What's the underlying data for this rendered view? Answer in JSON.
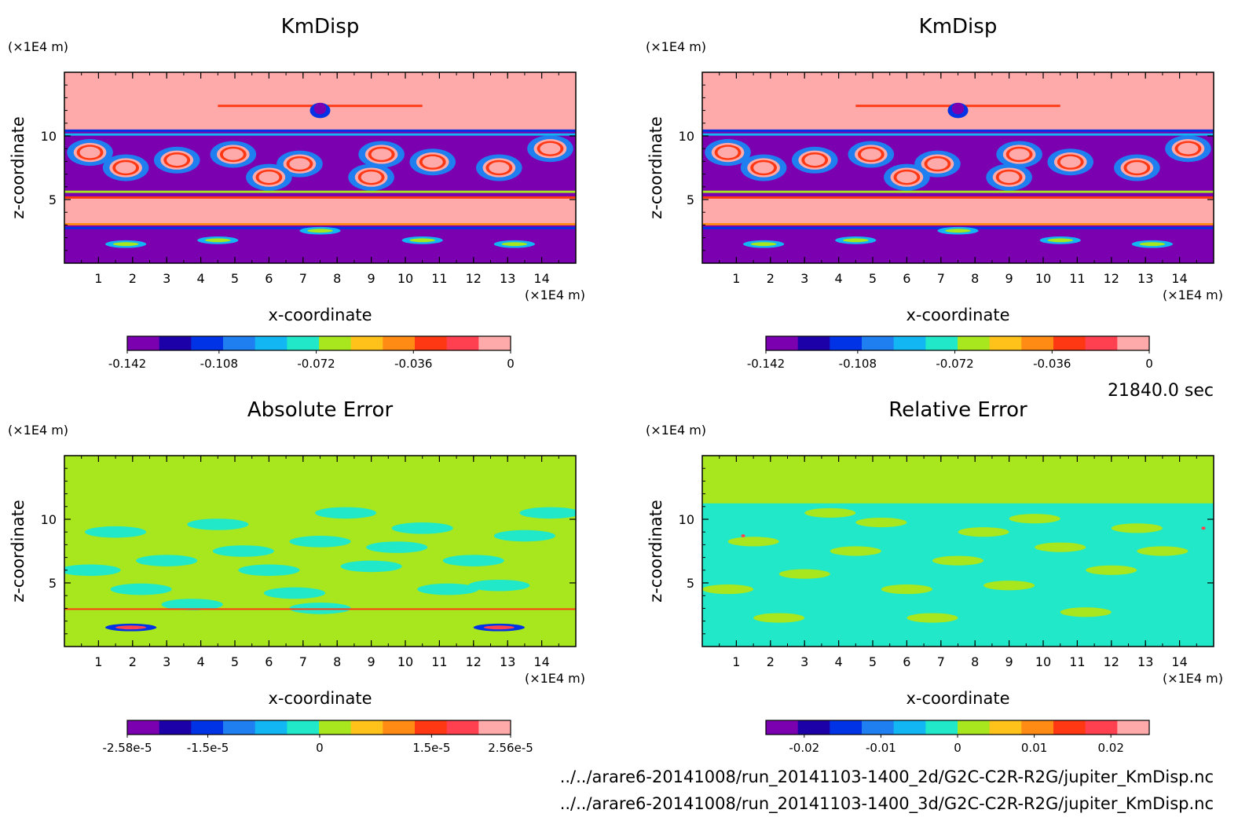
{
  "time_label": "21840.0 sec",
  "files": [
    "../../arare6-20141008/run_20141103-1400_2d/G2C-C2R-R2G/jupiter_KmDisp.nc",
    "../../arare6-20141008/run_20141103-1400_3d/G2C-C2R-R2G/jupiter_KmDisp.nc"
  ],
  "chart_data": [
    {
      "type": "heatmap",
      "title": "KmDisp",
      "xlabel": "x-coordinate",
      "ylabel": "z-coordinate",
      "x_unit": "(×1E4 m)",
      "y_unit": "(×1E4 m)",
      "x_ticks": [
        "1",
        "2",
        "3",
        "4",
        "5",
        "6",
        "7",
        "8",
        "9",
        "10",
        "11",
        "12",
        "13",
        "14"
      ],
      "y_ticks": [
        "5",
        "10"
      ],
      "xlim": [
        0,
        15
      ],
      "ylim": [
        0,
        15
      ],
      "pattern": "km",
      "colorbar": {
        "colors": [
          "#7a00b0",
          "#1c00a8",
          "#0033e6",
          "#1f7ff0",
          "#12b6f2",
          "#20e8c8",
          "#a8e61e",
          "#ffc21a",
          "#ff8a14",
          "#ff3814",
          "#ff4050",
          "#ffaaaa"
        ],
        "labels": [
          "-0.142",
          "-0.108",
          "-0.072",
          "-0.036",
          "0"
        ],
        "range": [
          -0.142,
          0
        ]
      }
    },
    {
      "type": "heatmap",
      "title": "KmDisp",
      "xlabel": "x-coordinate",
      "ylabel": "z-coordinate",
      "x_unit": "(×1E4 m)",
      "y_unit": "(×1E4 m)",
      "x_ticks": [
        "1",
        "2",
        "3",
        "4",
        "5",
        "6",
        "7",
        "8",
        "9",
        "10",
        "11",
        "12",
        "13",
        "14"
      ],
      "y_ticks": [
        "5",
        "10"
      ],
      "xlim": [
        0,
        15
      ],
      "ylim": [
        0,
        15
      ],
      "pattern": "km",
      "colorbar": {
        "colors": [
          "#7a00b0",
          "#1c00a8",
          "#0033e6",
          "#1f7ff0",
          "#12b6f2",
          "#20e8c8",
          "#a8e61e",
          "#ffc21a",
          "#ff8a14",
          "#ff3814",
          "#ff4050",
          "#ffaaaa"
        ],
        "labels": [
          "-0.142",
          "-0.108",
          "-0.072",
          "-0.036",
          "0"
        ],
        "range": [
          -0.142,
          0
        ]
      }
    },
    {
      "type": "heatmap",
      "title": "Absolute Error",
      "xlabel": "x-coordinate",
      "ylabel": "z-coordinate",
      "x_unit": "(×1E4 m)",
      "y_unit": "(×1E4 m)",
      "x_ticks": [
        "1",
        "2",
        "3",
        "4",
        "5",
        "6",
        "7",
        "8",
        "9",
        "10",
        "11",
        "12",
        "13",
        "14"
      ],
      "y_ticks": [
        "5",
        "10"
      ],
      "xlim": [
        0,
        15
      ],
      "ylim": [
        0,
        15
      ],
      "pattern": "abs",
      "colorbar": {
        "colors": [
          "#7a00b0",
          "#1c00a8",
          "#0033e6",
          "#1f7ff0",
          "#12b6f2",
          "#20e8c8",
          "#a8e61e",
          "#ffc21a",
          "#ff8a14",
          "#ff3814",
          "#ff4050",
          "#ffaaaa"
        ],
        "labels": [
          "-2.58e-5",
          "-1.5e-5",
          "0",
          "1.5e-5",
          "2.56e-5"
        ],
        "range": [
          -2.58e-05,
          2.56e-05
        ]
      }
    },
    {
      "type": "heatmap",
      "title": "Relative Error",
      "xlabel": "x-coordinate",
      "ylabel": "z-coordinate",
      "x_unit": "(×1E4 m)",
      "y_unit": "(×1E4 m)",
      "x_ticks": [
        "1",
        "2",
        "3",
        "4",
        "5",
        "6",
        "7",
        "8",
        "9",
        "10",
        "11",
        "12",
        "13",
        "14"
      ],
      "y_ticks": [
        "5",
        "10"
      ],
      "xlim": [
        0,
        15
      ],
      "ylim": [
        0,
        15
      ],
      "pattern": "rel",
      "colorbar": {
        "colors": [
          "#7a00b0",
          "#1c00a8",
          "#0033e6",
          "#1f7ff0",
          "#12b6f2",
          "#20e8c8",
          "#a8e61e",
          "#ffc21a",
          "#ff8a14",
          "#ff3814",
          "#ff4050",
          "#ffaaaa"
        ],
        "labels": [
          "-0.02",
          "-0.01",
          "0",
          "0.01",
          "0.02"
        ],
        "range": [
          -0.025,
          0.025
        ]
      }
    }
  ]
}
